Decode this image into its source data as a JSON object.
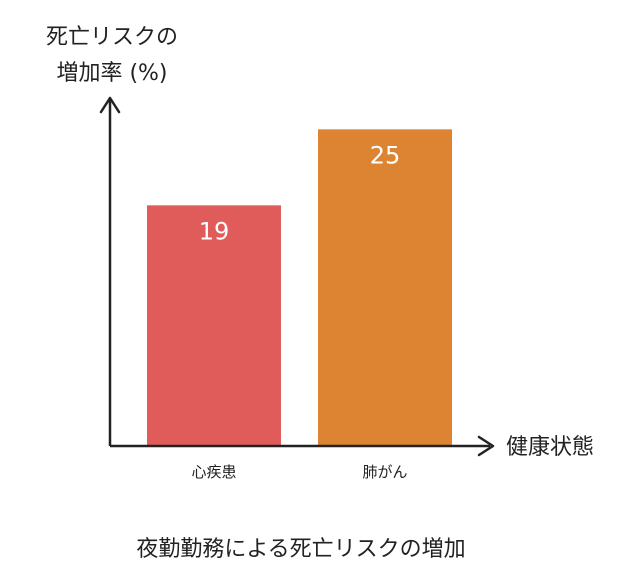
{
  "chart_data": {
    "type": "bar",
    "title": "夜勤勤務による死亡リスクの増加",
    "ylabel_lines": [
      "死亡リスクの",
      "増加率 (%)"
    ],
    "xlabel": "健康状態",
    "categories": [
      "心疾患",
      "肺がん"
    ],
    "values": [
      19,
      25
    ],
    "colors": [
      "#E05C5A",
      "#DD8432"
    ],
    "ylim": [
      0,
      30
    ],
    "grid": false,
    "legend": "none"
  },
  "colors": {
    "axis": "#222222",
    "text": "#222222",
    "value_label": "#ffffff"
  }
}
